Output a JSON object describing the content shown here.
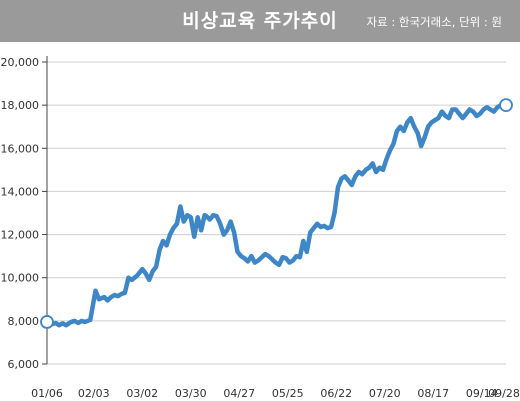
{
  "header": {
    "title": "비상교육 주가추이",
    "source": "자료 : 한국거래소, 단위 : 원"
  },
  "colors": {
    "header_bg": "#9a9a9a",
    "line": "#3f86c6",
    "grid": "#cfcfcf",
    "axis": "#444444"
  },
  "chart_data": {
    "type": "line",
    "title": "비상교육 주가추이",
    "source_note": "자료 : 한국거래소, 단위 : 원",
    "xlabel": "",
    "ylabel": "",
    "ylim": [
      6000,
      20000
    ],
    "yticks": [
      6000,
      8000,
      10000,
      12000,
      14000,
      16000,
      18000,
      20000
    ],
    "ytick_labels": [
      "6,000",
      "8,000",
      "10,000",
      "12,000",
      "14,000",
      "16,000",
      "18,000",
      "20,000"
    ],
    "xlim": [
      0,
      265
    ],
    "xticks": [
      0,
      27,
      55,
      83,
      111,
      139,
      167,
      195,
      223,
      251,
      265
    ],
    "xtick_labels": [
      "01/06",
      "02/03",
      "03/02",
      "03/30",
      "04/27",
      "05/25",
      "06/22",
      "07/20",
      "08/17",
      "09/14",
      "09/28"
    ],
    "grid": "horizontal",
    "series": [
      {
        "name": "",
        "color": "#3f86c6",
        "x": [
          0,
          3,
          5,
          7,
          9,
          11,
          14,
          16,
          18,
          20,
          22,
          25,
          28,
          30,
          33,
          35,
          37,
          39,
          41,
          43,
          45,
          47,
          49,
          52,
          55,
          57,
          59,
          61,
          63,
          65,
          67,
          69,
          71,
          73,
          75,
          77,
          79,
          81,
          83,
          85,
          87,
          89,
          91,
          92,
          94,
          96,
          98,
          100,
          102,
          104,
          106,
          108,
          110,
          112,
          114,
          116,
          118,
          120,
          122,
          124,
          126,
          128,
          130,
          132,
          134,
          136,
          138,
          140,
          142,
          144,
          146,
          148,
          150,
          152,
          154,
          156,
          158,
          160,
          162,
          164,
          166,
          168,
          170,
          172,
          174,
          176,
          178,
          180,
          182,
          184,
          186,
          188,
          190,
          192,
          194,
          196,
          198,
          200,
          202,
          204,
          206,
          208,
          210,
          212,
          214,
          216,
          218,
          220,
          222,
          224,
          226,
          228,
          230,
          232,
          234,
          236,
          238,
          240,
          242,
          244,
          246,
          248,
          250,
          252,
          254,
          256,
          258,
          260,
          262,
          264,
          265
        ],
        "y": [
          7950,
          7850,
          7900,
          7800,
          7880,
          7800,
          7950,
          8000,
          7900,
          8000,
          7950,
          8050,
          9400,
          9000,
          9100,
          8950,
          9100,
          9200,
          9150,
          9250,
          9300,
          10000,
          9900,
          10100,
          10400,
          10200,
          9900,
          10300,
          10500,
          11300,
          11700,
          11500,
          12000,
          12300,
          12500,
          13300,
          12600,
          12900,
          12800,
          11900,
          12800,
          12200,
          12900,
          12850,
          12700,
          12900,
          12850,
          12500,
          12000,
          12200,
          12600,
          12100,
          11200,
          11000,
          10900,
          10750,
          11000,
          10700,
          10800,
          10950,
          11100,
          11000,
          10850,
          10700,
          10600,
          10950,
          10900,
          10700,
          10800,
          11000,
          10950,
          11700,
          11200,
          12100,
          12300,
          12500,
          12350,
          12400,
          12300,
          12350,
          13000,
          14200,
          14600,
          14700,
          14500,
          14300,
          14700,
          14900,
          14800,
          15000,
          15100,
          15300,
          14900,
          15100,
          15000,
          15500,
          15900,
          16200,
          16800,
          17000,
          16800,
          17200,
          17400,
          17000,
          16700,
          16100,
          16500,
          17000,
          17200,
          17300,
          17400,
          17700,
          17500,
          17400,
          17800,
          17800,
          17600,
          17400,
          17600,
          17800,
          17700,
          17500,
          17600,
          17800,
          17900,
          17800,
          17700,
          17900,
          18000,
          17950,
          18000
        ]
      }
    ]
  }
}
